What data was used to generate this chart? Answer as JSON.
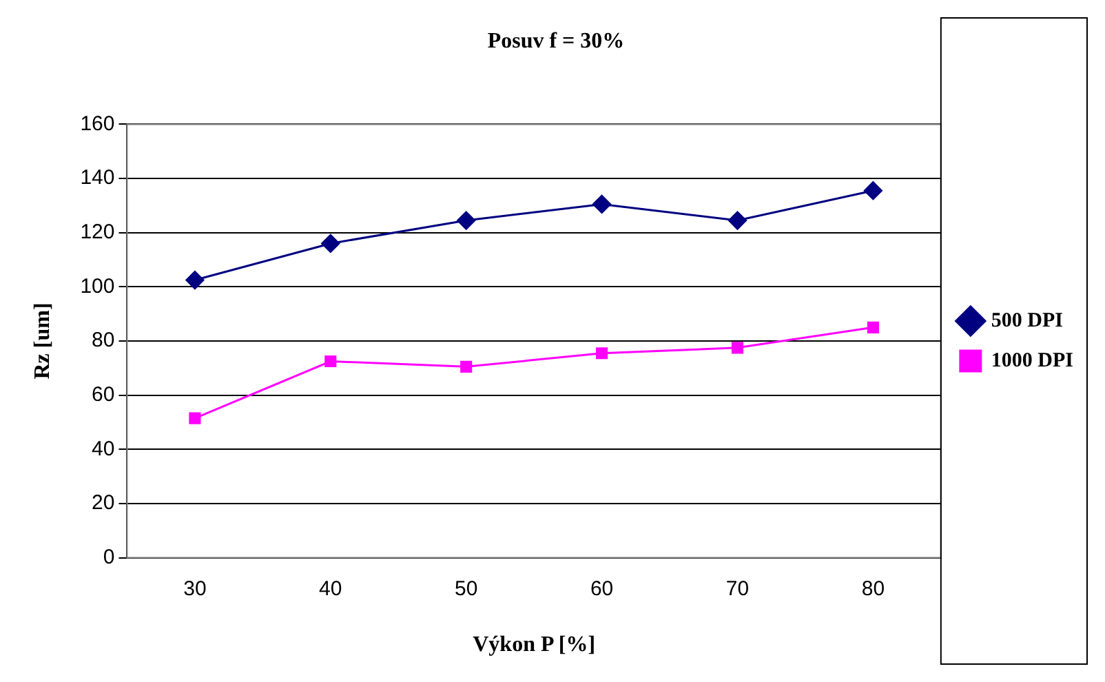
{
  "chart_data": {
    "type": "line",
    "title": "Posuv f = 30%",
    "xlabel": "Výkon P [%]",
    "ylabel": "Rz [um]",
    "categories": [
      "30",
      "40",
      "50",
      "60",
      "70",
      "80"
    ],
    "series": [
      {
        "name": "500 DPI",
        "color": "#000080",
        "marker": "diamond",
        "values": [
          102.5,
          116,
          124.5,
          130.5,
          124.5,
          135.5
        ]
      },
      {
        "name": "1000 DPI",
        "color": "#ff00ff",
        "marker": "square",
        "values": [
          51.5,
          72.5,
          70.5,
          75.5,
          77.5,
          85
        ]
      }
    ],
    "ylim": [
      0,
      160
    ],
    "yticks": [
      0,
      20,
      40,
      60,
      80,
      100,
      120,
      140,
      160
    ],
    "grid": "y",
    "legend": "right"
  }
}
